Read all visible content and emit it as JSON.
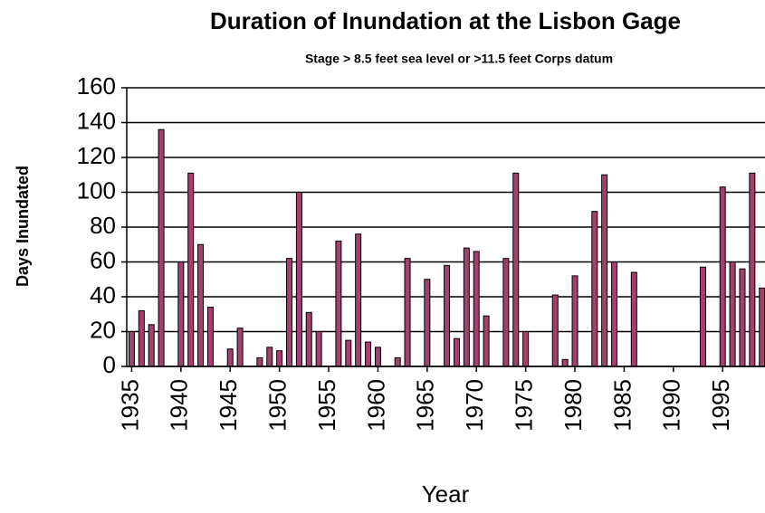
{
  "chart_data": {
    "type": "bar",
    "title": "Duration of Inundation at the Lisbon Gage",
    "subtitle": "Stage > 8.5 feet sea level or >11.5 feet Corps datum",
    "x_label": "Year",
    "y_label": "Days Inundated",
    "x": [
      1935,
      1936,
      1937,
      1938,
      1939,
      1940,
      1941,
      1942,
      1943,
      1944,
      1945,
      1946,
      1947,
      1948,
      1949,
      1950,
      1951,
      1952,
      1953,
      1954,
      1955,
      1956,
      1957,
      1958,
      1959,
      1960,
      1961,
      1962,
      1963,
      1964,
      1965,
      1966,
      1967,
      1968,
      1969,
      1970,
      1971,
      1972,
      1973,
      1974,
      1975,
      1976,
      1977,
      1978,
      1979,
      1980,
      1981,
      1982,
      1983,
      1984,
      1985,
      1986,
      1987,
      1988,
      1989,
      1990,
      1991,
      1992,
      1993,
      1994,
      1995,
      1996,
      1997,
      1998,
      1999
    ],
    "values": [
      20,
      32,
      24,
      136,
      null,
      60,
      111,
      70,
      34,
      null,
      10,
      22,
      null,
      5,
      11,
      9,
      62,
      100,
      31,
      20,
      null,
      72,
      15,
      76,
      14,
      11,
      null,
      5,
      62,
      null,
      50,
      null,
      58,
      16,
      68,
      66,
      29,
      null,
      62,
      111,
      20,
      null,
      null,
      41,
      4,
      52,
      null,
      89,
      110,
      60,
      null,
      54,
      null,
      null,
      null,
      null,
      null,
      null,
      57,
      null,
      103,
      60,
      56,
      111,
      45
    ],
    "color": "#a3406e",
    "xlim": [
      1934.5,
      1999.3
    ],
    "xticks": [
      1935,
      1940,
      1945,
      1950,
      1955,
      1960,
      1965,
      1970,
      1975,
      1980,
      1985,
      1990,
      1995
    ],
    "ylim": [
      0,
      160
    ],
    "yticks": [
      0,
      20,
      40,
      60,
      80,
      100,
      120,
      140,
      160
    ],
    "grid": true
  }
}
